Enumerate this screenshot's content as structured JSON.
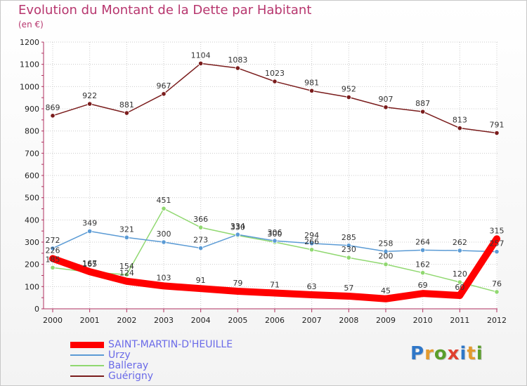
{
  "title": "Evolution du Montant de la Dette par Habitant",
  "subtitle": "(en €)",
  "logo": {
    "text": "Proxiti",
    "letter_colors": [
      "#2f77c8",
      "#e39a2d",
      "#5a9e2b",
      "#e0402f",
      "#2f77c8",
      "#e39a2d",
      "#5a9e2b"
    ]
  },
  "chart_data": {
    "type": "line",
    "categories": [
      "2000",
      "2001",
      "2002",
      "2003",
      "2004",
      "2005",
      "2006",
      "2007",
      "2008",
      "2009",
      "2010",
      "2011",
      "2012"
    ],
    "ylim": [
      0,
      1200
    ],
    "yticks": [
      0,
      100,
      200,
      300,
      400,
      500,
      600,
      700,
      800,
      900,
      1000,
      1100,
      1200
    ],
    "grid": true,
    "legend_position": "bottom-left",
    "series": [
      {
        "name": "SAINT-MARTIN-D'HEUILLE",
        "color": "#ff0000",
        "width": "thick",
        "values": [
          226,
          167,
          124,
          103,
          91,
          79,
          71,
          63,
          57,
          45,
          69,
          60,
          315
        ],
        "labels": [
          "226",
          "167",
          "124",
          "103",
          "91",
          "79",
          "71",
          "63",
          "57",
          "45",
          "69",
          "60",
          "315"
        ]
      },
      {
        "name": "Urzy",
        "color": "#5b9bd5",
        "width": "thin",
        "values": [
          272,
          349,
          321,
          300,
          273,
          334,
          306,
          294,
          285,
          258,
          264,
          262,
          257
        ],
        "labels": [
          "272",
          "349",
          "321",
          "300",
          "273",
          "334",
          "306",
          "294",
          "285",
          "258",
          "264",
          "262",
          "257"
        ]
      },
      {
        "name": "Balleray",
        "color": "#90d870",
        "width": "thin",
        "values": [
          185,
          165,
          154,
          451,
          366,
          330,
          300,
          266,
          230,
          200,
          162,
          120,
          76
        ],
        "labels": [
          "185",
          "165",
          "154",
          "451",
          "366",
          "330",
          "300",
          "266",
          "230",
          "200",
          "162",
          "120",
          "76"
        ]
      },
      {
        "name": "Guérigny",
        "color": "#7a1c1c",
        "width": "thin",
        "values": [
          869,
          922,
          881,
          967,
          1104,
          1083,
          1023,
          981,
          952,
          907,
          887,
          813,
          791
        ],
        "labels": [
          "869",
          "922",
          "881",
          "967",
          "1104",
          "1083",
          "1023",
          "981",
          "952",
          "907",
          "887",
          "813",
          "791"
        ]
      }
    ]
  }
}
